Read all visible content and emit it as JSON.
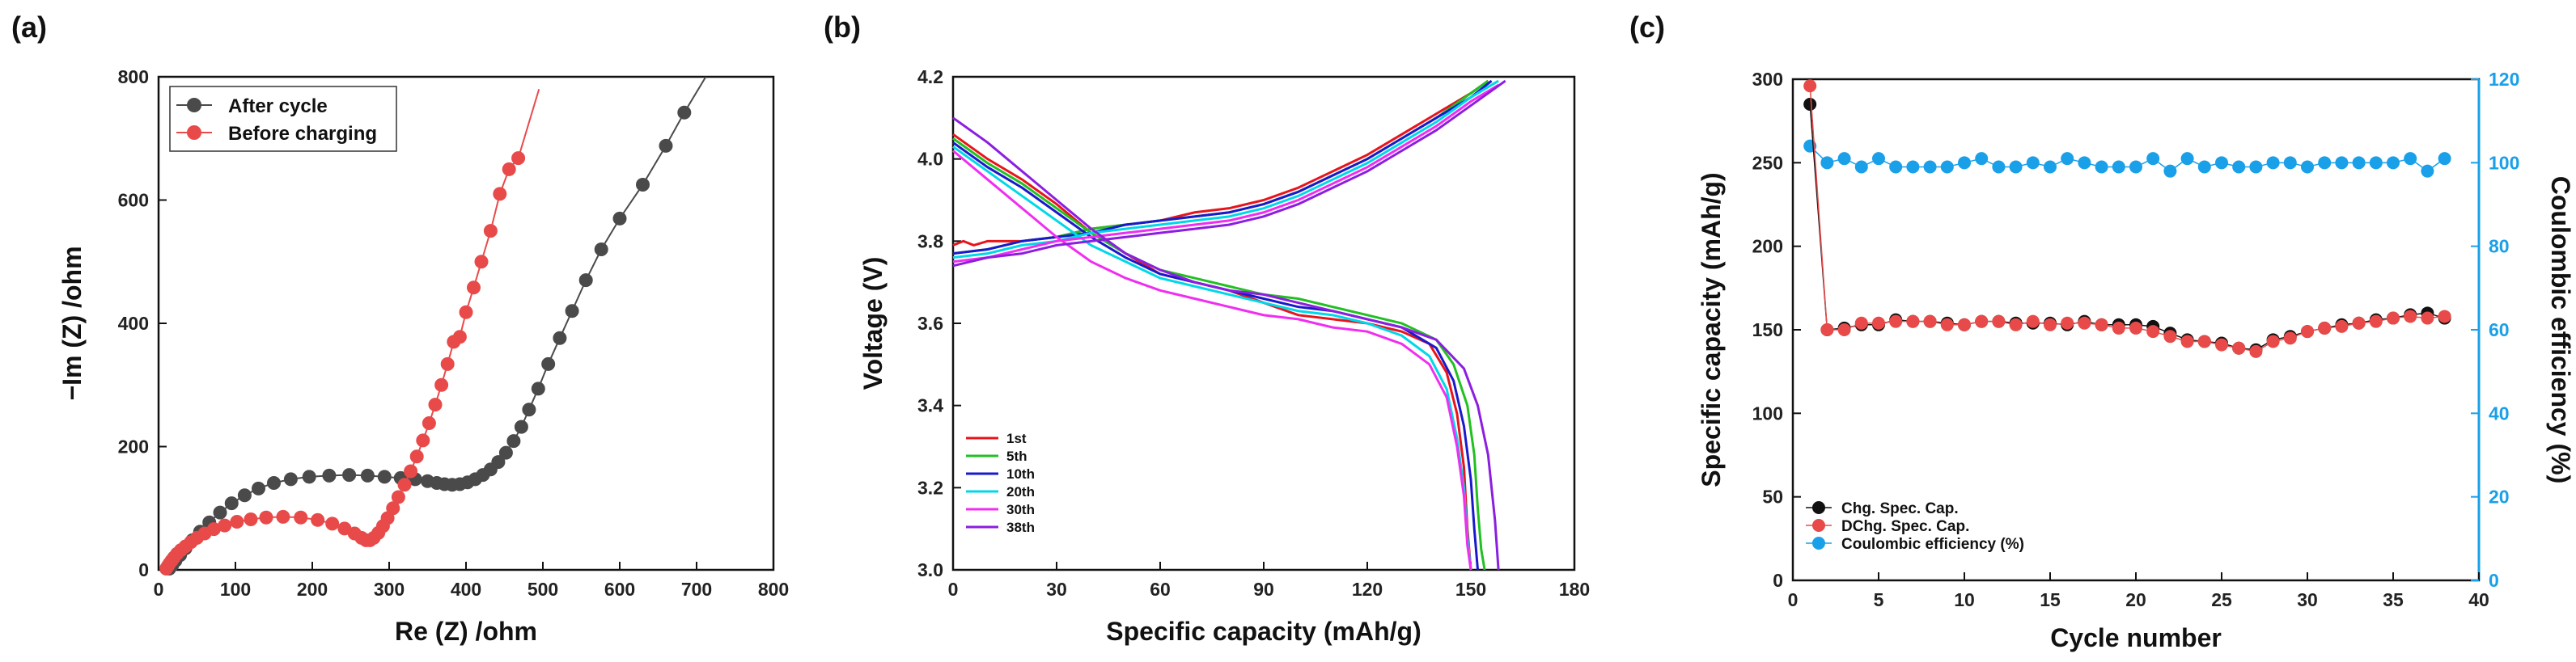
{
  "chart_data": [
    {
      "panel_label": "(a)",
      "type": "scatter",
      "xlabel": "Re (Z) /ohm",
      "ylabel": "−Im (Z) /ohm",
      "xlim": [
        0,
        800
      ],
      "ylim": [
        0,
        800
      ],
      "xticks": [
        "0",
        "100",
        "200",
        "300",
        "400",
        "500",
        "600",
        "700",
        "800"
      ],
      "yticks": [
        "0",
        "200",
        "400",
        "600",
        "800"
      ],
      "legend_position": "top-left",
      "series": [
        {
          "name": "After cycle",
          "color": "#4a4a4a",
          "x": [
            14,
            18,
            22,
            28,
            35,
            44,
            54,
            66,
            80,
            95,
            112,
            130,
            150,
            172,
            196,
            222,
            248,
            272,
            294,
            315,
            334,
            350,
            362,
            372,
            382,
            392,
            402,
            412,
            422,
            432,
            442,
            452,
            462,
            472,
            482,
            494,
            507,
            522,
            538,
            556,
            576,
            600,
            630,
            660,
            684
          ],
          "y": [
            2,
            8,
            15,
            24,
            35,
            48,
            62,
            77,
            93,
            108,
            121,
            132,
            141,
            147,
            151,
            153,
            154,
            153,
            151,
            149,
            147,
            144,
            141,
            139,
            138,
            139,
            142,
            147,
            154,
            163,
            175,
            190,
            209,
            232,
            260,
            294,
            334,
            376,
            420,
            470,
            520,
            570,
            625,
            688,
            742
          ]
        },
        {
          "name": "Before charging",
          "color": "#e84a4a",
          "x": [
            10,
            12,
            14,
            17,
            20,
            24,
            29,
            35,
            42,
            50,
            60,
            72,
            86,
            102,
            120,
            140,
            162,
            185,
            207,
            226,
            242,
            255,
            264,
            270,
            275,
            280,
            286,
            292,
            298,
            305,
            312,
            320,
            328,
            336,
            344,
            352,
            360,
            368,
            376,
            384,
            392,
            400,
            410,
            420,
            432,
            444,
            456,
            468
          ],
          "y": [
            2,
            6,
            10,
            15,
            20,
            26,
            32,
            38,
            45,
            52,
            59,
            66,
            72,
            78,
            82,
            85,
            86,
            85,
            81,
            75,
            67,
            59,
            52,
            48,
            48,
            52,
            60,
            71,
            84,
            100,
            118,
            138,
            160,
            184,
            210,
            238,
            268,
            300,
            334,
            370,
            378,
            418,
            458,
            500,
            550,
            610,
            650,
            668
          ]
        }
      ],
      "extra_lines": [
        {
          "name": "Before charging fit",
          "x": [
            468,
            495
          ],
          "y": [
            668,
            780
          ]
        },
        {
          "name": "After cycle fit",
          "x": [
            684,
            712
          ],
          "y": [
            742,
            800
          ]
        }
      ]
    },
    {
      "panel_label": "(b)",
      "type": "line",
      "xlabel": "Specific capacity (mAh/g)",
      "ylabel": "Voltage (V)",
      "xlim": [
        0,
        180
      ],
      "ylim": [
        3.0,
        4.2
      ],
      "xticks": [
        "0",
        "30",
        "60",
        "90",
        "120",
        "150",
        "180"
      ],
      "yticks": [
        "3.0",
        "3.2",
        "3.4",
        "3.6",
        "3.8",
        "4.0",
        "4.2"
      ],
      "legend_position": "bottom-left",
      "series": [
        {
          "name": "1st",
          "color": "#e8141c",
          "charge": {
            "x": [
              0,
              3,
              6,
              10,
              15,
              20,
              30,
              40,
              50,
              60,
              70,
              80,
              90,
              100,
              110,
              120,
              130,
              140,
              150,
              155
            ],
            "y": [
              3.79,
              3.8,
              3.79,
              3.8,
              3.8,
              3.8,
              3.81,
              3.83,
              3.84,
              3.85,
              3.87,
              3.88,
              3.9,
              3.93,
              3.97,
              4.01,
              4.06,
              4.11,
              4.16,
              4.19
            ]
          },
          "discharge": {
            "x": [
              0,
              5,
              10,
              20,
              30,
              40,
              50,
              60,
              70,
              80,
              90,
              100,
              110,
              120,
              130,
              138,
              143,
              146,
              148,
              149,
              150
            ],
            "y": [
              4.06,
              4.03,
              4.0,
              3.95,
              3.89,
              3.82,
              3.77,
              3.72,
              3.7,
              3.68,
              3.65,
              3.62,
              3.61,
              3.6,
              3.58,
              3.55,
              3.48,
              3.38,
              3.25,
              3.1,
              3.0
            ]
          }
        },
        {
          "name": "5th",
          "color": "#22c022",
          "charge": {
            "x": [
              0,
              10,
              20,
              30,
              40,
              50,
              60,
              70,
              80,
              90,
              100,
              110,
              120,
              130,
              140,
              150,
              155
            ],
            "y": [
              3.77,
              3.78,
              3.8,
              3.81,
              3.83,
              3.84,
              3.85,
              3.86,
              3.87,
              3.89,
              3.92,
              3.96,
              4.0,
              4.05,
              4.1,
              4.16,
              4.19
            ]
          },
          "discharge": {
            "x": [
              0,
              10,
              20,
              30,
              40,
              50,
              60,
              70,
              80,
              90,
              100,
              110,
              120,
              130,
              140,
              145,
              149,
              151,
              152,
              153,
              154
            ],
            "y": [
              4.05,
              3.99,
              3.94,
              3.88,
              3.82,
              3.77,
              3.73,
              3.71,
              3.69,
              3.67,
              3.66,
              3.64,
              3.62,
              3.6,
              3.56,
              3.5,
              3.4,
              3.28,
              3.15,
              3.05,
              3.0
            ]
          }
        },
        {
          "name": "10th",
          "color": "#1a1acc",
          "charge": {
            "x": [
              0,
              10,
              20,
              30,
              40,
              50,
              60,
              70,
              80,
              90,
              100,
              110,
              120,
              130,
              140,
              150,
              156
            ],
            "y": [
              3.77,
              3.78,
              3.8,
              3.81,
              3.82,
              3.84,
              3.85,
              3.86,
              3.87,
              3.89,
              3.92,
              3.96,
              4.0,
              4.05,
              4.1,
              4.15,
              4.19
            ]
          },
          "discharge": {
            "x": [
              0,
              10,
              20,
              30,
              40,
              50,
              60,
              70,
              80,
              90,
              100,
              110,
              120,
              130,
              140,
              145,
              148,
              150,
              151,
              152
            ],
            "y": [
              4.04,
              3.98,
              3.93,
              3.87,
              3.81,
              3.76,
              3.72,
              3.7,
              3.68,
              3.66,
              3.64,
              3.63,
              3.61,
              3.59,
              3.54,
              3.46,
              3.35,
              3.22,
              3.1,
              3.0
            ]
          }
        },
        {
          "name": "20th",
          "color": "#00d8e8",
          "charge": {
            "x": [
              0,
              10,
              20,
              30,
              40,
              50,
              60,
              70,
              80,
              90,
              100,
              110,
              120,
              130,
              140,
              150,
              158
            ],
            "y": [
              3.76,
              3.77,
              3.79,
              3.8,
              3.82,
              3.83,
              3.84,
              3.85,
              3.86,
              3.88,
              3.91,
              3.95,
              3.99,
              4.04,
              4.09,
              4.15,
              4.19
            ]
          },
          "discharge": {
            "x": [
              0,
              10,
              20,
              30,
              40,
              50,
              60,
              70,
              80,
              90,
              100,
              110,
              120,
              130,
              138,
              143,
              146,
              148,
              149,
              150
            ],
            "y": [
              4.03,
              3.97,
              3.91,
              3.85,
              3.79,
              3.75,
              3.71,
              3.69,
              3.67,
              3.65,
              3.63,
              3.62,
              3.6,
              3.57,
              3.52,
              3.44,
              3.32,
              3.2,
              3.08,
              3.0
            ]
          }
        },
        {
          "name": "30th",
          "color": "#f02ef0",
          "charge": {
            "x": [
              0,
              10,
              20,
              30,
              40,
              50,
              60,
              70,
              80,
              90,
              100,
              110,
              120,
              130,
              140,
              150,
              158
            ],
            "y": [
              3.75,
              3.76,
              3.78,
              3.8,
              3.81,
              3.82,
              3.83,
              3.84,
              3.85,
              3.87,
              3.9,
              3.94,
              3.98,
              4.03,
              4.08,
              4.14,
              4.18
            ]
          },
          "discharge": {
            "x": [
              0,
              10,
              20,
              30,
              40,
              50,
              60,
              70,
              80,
              90,
              100,
              110,
              120,
              130,
              138,
              143,
              146,
              148,
              149,
              150
            ],
            "y": [
              4.02,
              3.95,
              3.88,
              3.81,
              3.75,
              3.71,
              3.68,
              3.66,
              3.64,
              3.62,
              3.61,
              3.59,
              3.58,
              3.55,
              3.5,
              3.42,
              3.3,
              3.18,
              3.06,
              3.0
            ]
          }
        },
        {
          "name": "38th",
          "color": "#8c1ee0",
          "charge": {
            "x": [
              0,
              10,
              20,
              30,
              40,
              50,
              60,
              70,
              80,
              90,
              100,
              110,
              120,
              130,
              140,
              150,
              160
            ],
            "y": [
              3.74,
              3.76,
              3.77,
              3.79,
              3.8,
              3.81,
              3.82,
              3.83,
              3.84,
              3.86,
              3.89,
              3.93,
              3.97,
              4.02,
              4.07,
              4.13,
              4.19
            ]
          },
          "discharge": {
            "x": [
              0,
              10,
              20,
              30,
              40,
              50,
              60,
              70,
              80,
              90,
              100,
              110,
              120,
              130,
              140,
              148,
              152,
              155,
              157,
              158
            ],
            "y": [
              4.1,
              4.04,
              3.97,
              3.9,
              3.83,
              3.77,
              3.73,
              3.7,
              3.68,
              3.67,
              3.65,
              3.63,
              3.61,
              3.59,
              3.56,
              3.49,
              3.4,
              3.28,
              3.12,
              3.0
            ]
          }
        }
      ]
    },
    {
      "panel_label": "(c)",
      "type": "scatter",
      "xlabel": "Cycle number",
      "ylabel": "Specific capacity (mAh/g)",
      "ylabel_right": "Coulombic efficiency (%)",
      "xlim": [
        0,
        40
      ],
      "ylim": [
        0,
        300
      ],
      "ylim_right": [
        0,
        120
      ],
      "xticks": [
        "0",
        "5",
        "10",
        "15",
        "20",
        "25",
        "30",
        "35",
        "40"
      ],
      "yticks": [
        "0",
        "50",
        "100",
        "150",
        "200",
        "250",
        "300"
      ],
      "yticks_right": [
        "0",
        "20",
        "40",
        "60",
        "80",
        "100",
        "120"
      ],
      "legend_position": "bottom-left",
      "x": [
        1,
        2,
        3,
        4,
        5,
        6,
        7,
        8,
        9,
        10,
        11,
        12,
        13,
        14,
        15,
        16,
        17,
        18,
        19,
        20,
        21,
        22,
        23,
        24,
        25,
        26,
        27,
        28,
        29,
        30,
        31,
        32,
        33,
        34,
        35,
        36,
        37,
        38
      ],
      "series": [
        {
          "name": "Chg. Spec. Cap.",
          "color": "#111111",
          "axis": "left",
          "values": [
            285,
            150,
            151,
            153,
            153,
            156,
            155,
            155,
            154,
            153,
            155,
            155,
            154,
            154,
            154,
            153,
            155,
            153,
            153,
            153,
            152,
            148,
            144,
            143,
            142,
            139,
            138,
            144,
            146,
            149,
            151,
            153,
            154,
            156,
            157,
            159,
            160,
            157
          ]
        },
        {
          "name": "DChg. Spec. Cap.",
          "color": "#e84a4a",
          "axis": "left",
          "values": [
            296,
            150,
            150,
            154,
            154,
            155,
            155,
            155,
            153,
            153,
            155,
            155,
            153,
            155,
            153,
            154,
            154,
            153,
            151,
            151,
            149,
            146,
            143,
            143,
            141,
            139,
            137,
            143,
            145,
            149,
            151,
            152,
            154,
            155,
            157,
            158,
            157,
            158
          ]
        },
        {
          "name": "Coulombic efficiency (%)",
          "color": "#1aa0e8",
          "axis": "right",
          "values": [
            104,
            100,
            101,
            99,
            101,
            99,
            99,
            99,
            99,
            100,
            101,
            99,
            99,
            100,
            99,
            101,
            100,
            99,
            99,
            99,
            101,
            98,
            101,
            99,
            100,
            99,
            99,
            100,
            100,
            99,
            100,
            100,
            100,
            100,
            100,
            101,
            98,
            101
          ]
        }
      ]
    }
  ]
}
